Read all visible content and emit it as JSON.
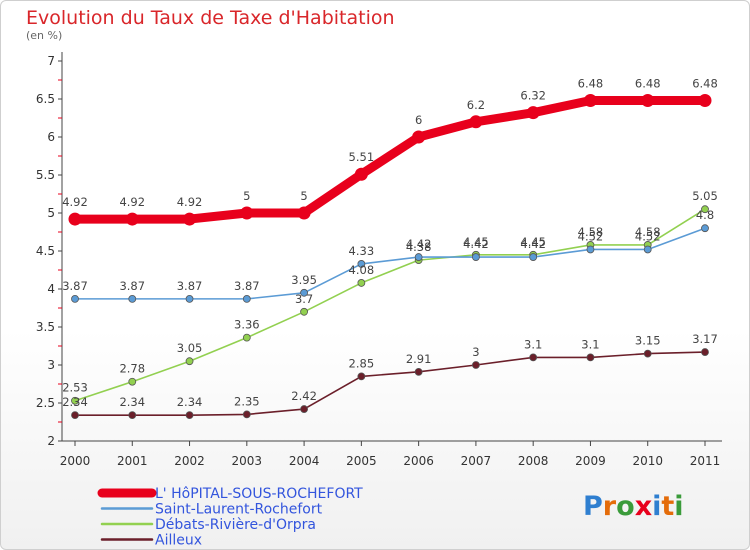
{
  "chart_data": {
    "type": "line",
    "title": "Evolution du Taux de Taxe d'Habitation",
    "subtitle": "(en %)",
    "x": [
      "2000",
      "2001",
      "2002",
      "2003",
      "2004",
      "2005",
      "2006",
      "2007",
      "2008",
      "2009",
      "2010",
      "2011"
    ],
    "ylim": [
      2,
      7
    ],
    "yticks": [
      "2",
      "2.5",
      "3",
      "3.5",
      "4",
      "4.5",
      "5",
      "5.5",
      "6",
      "6.5",
      "7"
    ],
    "grid": false,
    "legend_position": "bottom-left",
    "series": [
      {
        "name": "L' HôPITAL-SOUS-ROCHEFORT",
        "color": "#e8001c",
        "values": [
          4.92,
          4.92,
          4.92,
          5,
          5,
          5.51,
          6,
          6.2,
          6.32,
          6.48,
          6.48,
          6.48
        ],
        "labels": [
          "4.92",
          "4.92",
          "4.92",
          "5",
          "5",
          "5.51",
          "6",
          "6.2",
          "6.32",
          "6.48",
          "6.48",
          "6.48"
        ]
      },
      {
        "name": "Saint-Laurent-Rochefort",
        "color": "#5b9bd5",
        "values": [
          3.87,
          3.87,
          3.87,
          3.87,
          3.95,
          4.33,
          4.42,
          4.42,
          4.42,
          4.52,
          4.52,
          4.8
        ],
        "labels": [
          "3.87",
          "3.87",
          "3.87",
          "3.87",
          "3.95",
          "4.33",
          "4.42",
          "4.42",
          "4.42",
          "4.52",
          "4.52",
          "4.8"
        ]
      },
      {
        "name": "Débats-Rivière-d'Orpra",
        "color": "#92d050",
        "values": [
          2.53,
          2.78,
          3.05,
          3.36,
          3.7,
          4.08,
          4.38,
          4.45,
          4.45,
          4.58,
          4.58,
          5.05
        ],
        "labels": [
          "2.53",
          "2.78",
          "3.05",
          "3.36",
          "3.7",
          "4.08",
          "4.38",
          "4.45",
          "4.45",
          "4.58",
          "4.58",
          "5.05"
        ]
      },
      {
        "name": "Ailleux",
        "color": "#6b1f2a",
        "values": [
          2.34,
          2.34,
          2.34,
          2.35,
          2.42,
          2.85,
          2.91,
          3,
          3.1,
          3.1,
          3.15,
          3.17
        ],
        "labels": [
          "2.34",
          "2.34",
          "2.34",
          "2.35",
          "2.42",
          "2.85",
          "2.91",
          "3",
          "3.1",
          "3.1",
          "3.15",
          "3.17"
        ]
      }
    ]
  },
  "brand": {
    "text": "Proxiti",
    "letter_colors": [
      "#2f7fd0",
      "#e46c0a",
      "#3a9b3a",
      "#e8001c",
      "#2f7fd0",
      "#e46c0a",
      "#3a9b3a"
    ]
  }
}
